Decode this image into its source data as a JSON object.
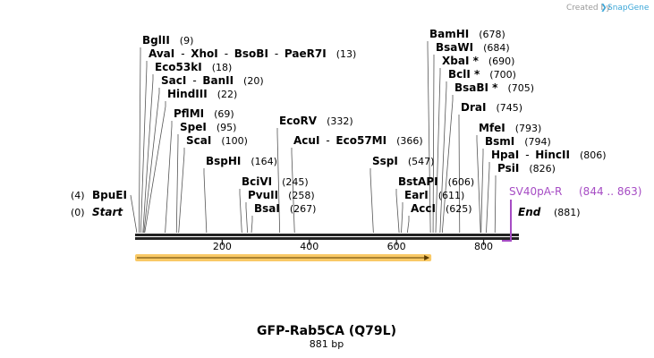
{
  "header": {
    "credit": "Created by",
    "brand": "SnapGene"
  },
  "sequence": {
    "name": "GFP-Rab5CA (Q79L)",
    "length_label": "881 bp",
    "length_bp": 881
  },
  "axis": {
    "ticks": [
      "200",
      "400",
      "600",
      "800"
    ],
    "tick_values": [
      200,
      400,
      600,
      800
    ]
  },
  "ends": {
    "start_pos": "(0)",
    "start_label": "Start",
    "end_label": "End",
    "end_pos": "(881)"
  },
  "feature_label": {
    "name": "SV40pA-R",
    "range": "(844 .. 863)",
    "color": "#a64cc4"
  },
  "orf_bar": {
    "color": "#f7b733",
    "start_bp": 0,
    "end_bp": 680
  },
  "sites": [
    {
      "id": "bpuei",
      "names": [
        "BpuEI"
      ],
      "pos": "(4)",
      "bp": 4
    },
    {
      "id": "bglii",
      "names": [
        "BglII"
      ],
      "pos": "(9)",
      "bp": 9
    },
    {
      "id": "avai",
      "names": [
        "AvaI",
        "XhoI",
        "BsoBI",
        "PaeR7I"
      ],
      "pos": "(13)",
      "bp": 13
    },
    {
      "id": "eco53ki",
      "names": [
        "Eco53kI"
      ],
      "pos": "(18)",
      "bp": 18
    },
    {
      "id": "saci",
      "names": [
        "SacI",
        "BanII"
      ],
      "pos": "(20)",
      "bp": 20
    },
    {
      "id": "hindiii",
      "names": [
        "HindIII"
      ],
      "pos": "(22)",
      "bp": 22
    },
    {
      "id": "pfimi",
      "names": [
        "PflMI"
      ],
      "pos": "(69)",
      "bp": 69
    },
    {
      "id": "spei",
      "names": [
        "SpeI"
      ],
      "pos": "(95)",
      "bp": 95
    },
    {
      "id": "scai",
      "names": [
        "ScaI"
      ],
      "pos": "(100)",
      "bp": 100
    },
    {
      "id": "bsphi",
      "names": [
        "BspHI"
      ],
      "pos": "(164)",
      "bp": 164
    },
    {
      "id": "bcivi",
      "names": [
        "BciVI"
      ],
      "pos": "(245)",
      "bp": 245
    },
    {
      "id": "pvuii",
      "names": [
        "PvuII"
      ],
      "pos": "(258)",
      "bp": 258
    },
    {
      "id": "bsai",
      "names": [
        "BsaI"
      ],
      "pos": "(267)",
      "bp": 267
    },
    {
      "id": "ecorv",
      "names": [
        "EcoRV"
      ],
      "pos": "(332)",
      "bp": 332
    },
    {
      "id": "acui",
      "names": [
        "AcuI",
        "Eco57MI"
      ],
      "pos": "(366)",
      "bp": 366
    },
    {
      "id": "sspi",
      "names": [
        "SspI"
      ],
      "pos": "(547)",
      "bp": 547
    },
    {
      "id": "bstapi",
      "names": [
        "BstAPI"
      ],
      "pos": "(606)",
      "bp": 606
    },
    {
      "id": "eari",
      "names": [
        "EarI"
      ],
      "pos": "(611)",
      "bp": 611
    },
    {
      "id": "acci",
      "names": [
        "AccI"
      ],
      "pos": "(625)",
      "bp": 625
    },
    {
      "id": "bamhi",
      "names": [
        "BamHI"
      ],
      "pos": "(678)",
      "bp": 678
    },
    {
      "id": "bsawi",
      "names": [
        "BsaWI"
      ],
      "pos": "(684)",
      "bp": 684
    },
    {
      "id": "xbai",
      "names": [
        "XbaI *"
      ],
      "pos": "(690)",
      "bp": 690
    },
    {
      "id": "bcli",
      "names": [
        "BclI *"
      ],
      "pos": "(700)",
      "bp": 700
    },
    {
      "id": "bsabi",
      "names": [
        "BsaBI *"
      ],
      "pos": "(705)",
      "bp": 705
    },
    {
      "id": "drai",
      "names": [
        "DraI"
      ],
      "pos": "(745)",
      "bp": 745
    },
    {
      "id": "mfei",
      "names": [
        "MfeI"
      ],
      "pos": "(793)",
      "bp": 793
    },
    {
      "id": "bsmi",
      "names": [
        "BsmI"
      ],
      "pos": "(794)",
      "bp": 794
    },
    {
      "id": "hpai",
      "names": [
        "HpaI",
        "HincII"
      ],
      "pos": "(806)",
      "bp": 806
    },
    {
      "id": "psii",
      "names": [
        "PsiI"
      ],
      "pos": "(826)",
      "bp": 826
    }
  ]
}
